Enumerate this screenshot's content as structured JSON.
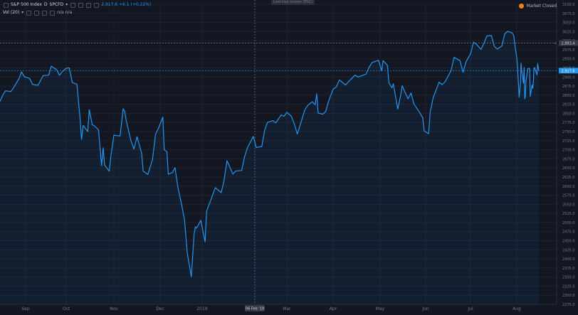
{
  "legend": {
    "symbol": "S&P 500 Index",
    "interval": "D",
    "exchange": "SPCFD",
    "price_info": "2,917.6  +6.1 (+0.22%)",
    "indicator_name": "Vol (20)",
    "indicator_values": "n/a  n/a"
  },
  "toolbar_hint": "Last tool screen (ESC)",
  "market_status": "Market Closed",
  "price_labels": {
    "top_line": "2,993.4",
    "current": "2,917.6",
    "crosshair_date": "06 Feb '19"
  },
  "colors": {
    "background": "#131722",
    "line": "#2196f3",
    "grid": "#1e2230",
    "market_dot": "#f57f17"
  },
  "chart_data": {
    "type": "line",
    "x_labels": [
      "Sep",
      "Oct",
      "Nov",
      "Dec",
      "2019",
      "Mar",
      "Apr",
      "May",
      "Jun",
      "Jul",
      "Aug"
    ],
    "y_ticks": [
      "3100.0",
      "3075.0",
      "3050.0",
      "3025.0",
      "3000.0",
      "2975.0",
      "2950.0",
      "2925.0",
      "2900.0",
      "2875.0",
      "2850.0",
      "2825.0",
      "2800.0",
      "2775.0",
      "2750.0",
      "2725.0",
      "2700.0",
      "2675.0",
      "2650.0",
      "2625.0",
      "2600.0",
      "2575.0",
      "2550.0",
      "2525.0",
      "2500.0",
      "2475.0",
      "2450.0",
      "2425.0",
      "2400.0",
      "2375.0",
      "2350.0",
      "2325.0",
      "2300.0",
      "2275.0"
    ],
    "ylim": [
      2275,
      3100
    ],
    "grid": true,
    "series": [
      {
        "points": [
          [
            "2018-08-13",
            2833
          ],
          [
            "2018-08-15",
            2850
          ],
          [
            "2018-08-17",
            2862
          ],
          [
            "2018-08-21",
            2860
          ],
          [
            "2018-08-23",
            2870
          ],
          [
            "2018-08-27",
            2895
          ],
          [
            "2018-08-29",
            2914
          ],
          [
            "2018-08-31",
            2901
          ],
          [
            "2018-09-04",
            2896
          ],
          [
            "2018-09-06",
            2880
          ],
          [
            "2018-09-10",
            2877
          ],
          [
            "2018-09-12",
            2890
          ],
          [
            "2018-09-14",
            2904
          ],
          [
            "2018-09-18",
            2905
          ],
          [
            "2018-09-20",
            2930
          ],
          [
            "2018-09-24",
            2920
          ],
          [
            "2018-09-26",
            2905
          ],
          [
            "2018-09-28",
            2914
          ],
          [
            "2018-10-01",
            2924
          ],
          [
            "2018-10-03",
            2925
          ],
          [
            "2018-10-05",
            2885
          ],
          [
            "2018-10-08",
            2880
          ],
          [
            "2018-10-10",
            2785
          ],
          [
            "2018-10-11",
            2728
          ],
          [
            "2018-10-12",
            2767
          ],
          [
            "2018-10-15",
            2750
          ],
          [
            "2018-10-16",
            2810
          ],
          [
            "2018-10-18",
            2768
          ],
          [
            "2018-10-19",
            2767
          ],
          [
            "2018-10-22",
            2755
          ],
          [
            "2018-10-24",
            2656
          ],
          [
            "2018-10-25",
            2705
          ],
          [
            "2018-10-26",
            2658
          ],
          [
            "2018-10-29",
            2641
          ],
          [
            "2018-10-30",
            2682
          ],
          [
            "2018-11-01",
            2740
          ],
          [
            "2018-11-05",
            2738
          ],
          [
            "2018-11-07",
            2813
          ],
          [
            "2018-11-08",
            2806
          ],
          [
            "2018-11-09",
            2781
          ],
          [
            "2018-11-12",
            2726
          ],
          [
            "2018-11-14",
            2702
          ],
          [
            "2018-11-16",
            2736
          ],
          [
            "2018-11-19",
            2690
          ],
          [
            "2018-11-20",
            2641
          ],
          [
            "2018-11-23",
            2632
          ],
          [
            "2018-11-26",
            2673
          ],
          [
            "2018-11-28",
            2743
          ],
          [
            "2018-11-30",
            2760
          ],
          [
            "2018-12-03",
            2790
          ],
          [
            "2018-12-04",
            2700
          ],
          [
            "2018-12-06",
            2695
          ],
          [
            "2018-12-07",
            2633
          ],
          [
            "2018-12-10",
            2637
          ],
          [
            "2018-12-12",
            2651
          ],
          [
            "2018-12-14",
            2599
          ],
          [
            "2018-12-17",
            2546
          ],
          [
            "2018-12-19",
            2506
          ],
          [
            "2018-12-21",
            2416
          ],
          [
            "2018-12-24",
            2351
          ],
          [
            "2018-12-26",
            2467
          ],
          [
            "2018-12-27",
            2488
          ],
          [
            "2018-12-28",
            2485
          ],
          [
            "2018-12-31",
            2506
          ],
          [
            "2019-01-03",
            2447
          ],
          [
            "2019-01-04",
            2531
          ],
          [
            "2019-01-08",
            2574
          ],
          [
            "2019-01-10",
            2596
          ],
          [
            "2019-01-14",
            2582
          ],
          [
            "2019-01-16",
            2616
          ],
          [
            "2019-01-18",
            2670
          ],
          [
            "2019-01-22",
            2633
          ],
          [
            "2019-01-24",
            2642
          ],
          [
            "2019-01-28",
            2643
          ],
          [
            "2019-01-30",
            2681
          ],
          [
            "2019-02-01",
            2706
          ],
          [
            "2019-02-05",
            2737
          ],
          [
            "2019-02-07",
            2706
          ],
          [
            "2019-02-11",
            2709
          ],
          [
            "2019-02-13",
            2753
          ],
          [
            "2019-02-15",
            2775
          ],
          [
            "2019-02-19",
            2780
          ],
          [
            "2019-02-21",
            2774
          ],
          [
            "2019-02-25",
            2796
          ],
          [
            "2019-02-27",
            2792
          ],
          [
            "2019-03-01",
            2803
          ],
          [
            "2019-03-04",
            2792
          ],
          [
            "2019-03-06",
            2771
          ],
          [
            "2019-03-08",
            2743
          ],
          [
            "2019-03-11",
            2783
          ],
          [
            "2019-03-13",
            2810
          ],
          [
            "2019-03-15",
            2822
          ],
          [
            "2019-03-18",
            2832
          ],
          [
            "2019-03-20",
            2824
          ],
          [
            "2019-03-21",
            2854
          ],
          [
            "2019-03-22",
            2801
          ],
          [
            "2019-03-25",
            2798
          ],
          [
            "2019-03-27",
            2805
          ],
          [
            "2019-03-29",
            2834
          ],
          [
            "2019-04-01",
            2867
          ],
          [
            "2019-04-03",
            2873
          ],
          [
            "2019-04-05",
            2892
          ],
          [
            "2019-04-09",
            2878
          ],
          [
            "2019-04-11",
            2888
          ],
          [
            "2019-04-15",
            2905
          ],
          [
            "2019-04-17",
            2900
          ],
          [
            "2019-04-22",
            2908
          ],
          [
            "2019-04-24",
            2927
          ],
          [
            "2019-04-26",
            2940
          ],
          [
            "2019-04-30",
            2946
          ],
          [
            "2019-05-02",
            2917
          ],
          [
            "2019-05-03",
            2945
          ],
          [
            "2019-05-06",
            2932
          ],
          [
            "2019-05-07",
            2884
          ],
          [
            "2019-05-09",
            2870
          ],
          [
            "2019-05-10",
            2881
          ],
          [
            "2019-05-13",
            2812
          ],
          [
            "2019-05-15",
            2850
          ],
          [
            "2019-05-16",
            2876
          ],
          [
            "2019-05-20",
            2840
          ],
          [
            "2019-05-22",
            2856
          ],
          [
            "2019-05-24",
            2826
          ],
          [
            "2019-05-28",
            2802
          ],
          [
            "2019-05-30",
            2788
          ],
          [
            "2019-05-31",
            2752
          ],
          [
            "2019-06-03",
            2744
          ],
          [
            "2019-06-04",
            2803
          ],
          [
            "2019-06-06",
            2843
          ],
          [
            "2019-06-10",
            2886
          ],
          [
            "2019-06-12",
            2879
          ],
          [
            "2019-06-14",
            2887
          ],
          [
            "2019-06-18",
            2918
          ],
          [
            "2019-06-20",
            2954
          ],
          [
            "2019-06-24",
            2945
          ],
          [
            "2019-06-26",
            2913
          ],
          [
            "2019-06-28",
            2942
          ],
          [
            "2019-07-01",
            2964
          ],
          [
            "2019-07-03",
            2996
          ],
          [
            "2019-07-05",
            2990
          ],
          [
            "2019-07-08",
            2976
          ],
          [
            "2019-07-10",
            2993
          ],
          [
            "2019-07-12",
            3013
          ],
          [
            "2019-07-15",
            3014
          ],
          [
            "2019-07-17",
            2984
          ],
          [
            "2019-07-19",
            2977
          ],
          [
            "2019-07-22",
            2985
          ],
          [
            "2019-07-24",
            3019
          ],
          [
            "2019-07-26",
            3026
          ],
          [
            "2019-07-29",
            3021
          ],
          [
            "2019-07-30",
            3013
          ],
          [
            "2019-07-31",
            2980
          ],
          [
            "2019-08-01",
            2953
          ],
          [
            "2019-08-02",
            2932
          ],
          [
            "2019-08-05",
            2844
          ],
          [
            "2019-08-07",
            2884
          ],
          [
            "2019-08-08",
            2938
          ],
          [
            "2019-08-09",
            2918
          ],
          [
            "2019-08-12",
            2883
          ],
          [
            "2019-08-13",
            2926
          ],
          [
            "2019-08-14",
            2840
          ],
          [
            "2019-08-15",
            2848
          ],
          [
            "2019-08-16",
            2889
          ],
          [
            "2019-08-19",
            2923
          ],
          [
            "2019-08-21",
            2924
          ],
          [
            "2019-08-22",
            2922
          ],
          [
            "2019-08-23",
            2847
          ],
          [
            "2019-08-26",
            2878
          ],
          [
            "2019-08-27",
            2869
          ],
          [
            "2019-08-28",
            2887
          ],
          [
            "2019-08-29",
            2924
          ],
          [
            "2019-08-30",
            2926
          ],
          [
            "2019-09-03",
            2906
          ],
          [
            "2019-09-04",
            2937
          ],
          [
            "2019-09-06",
            2917.6
          ]
        ]
      }
    ]
  }
}
